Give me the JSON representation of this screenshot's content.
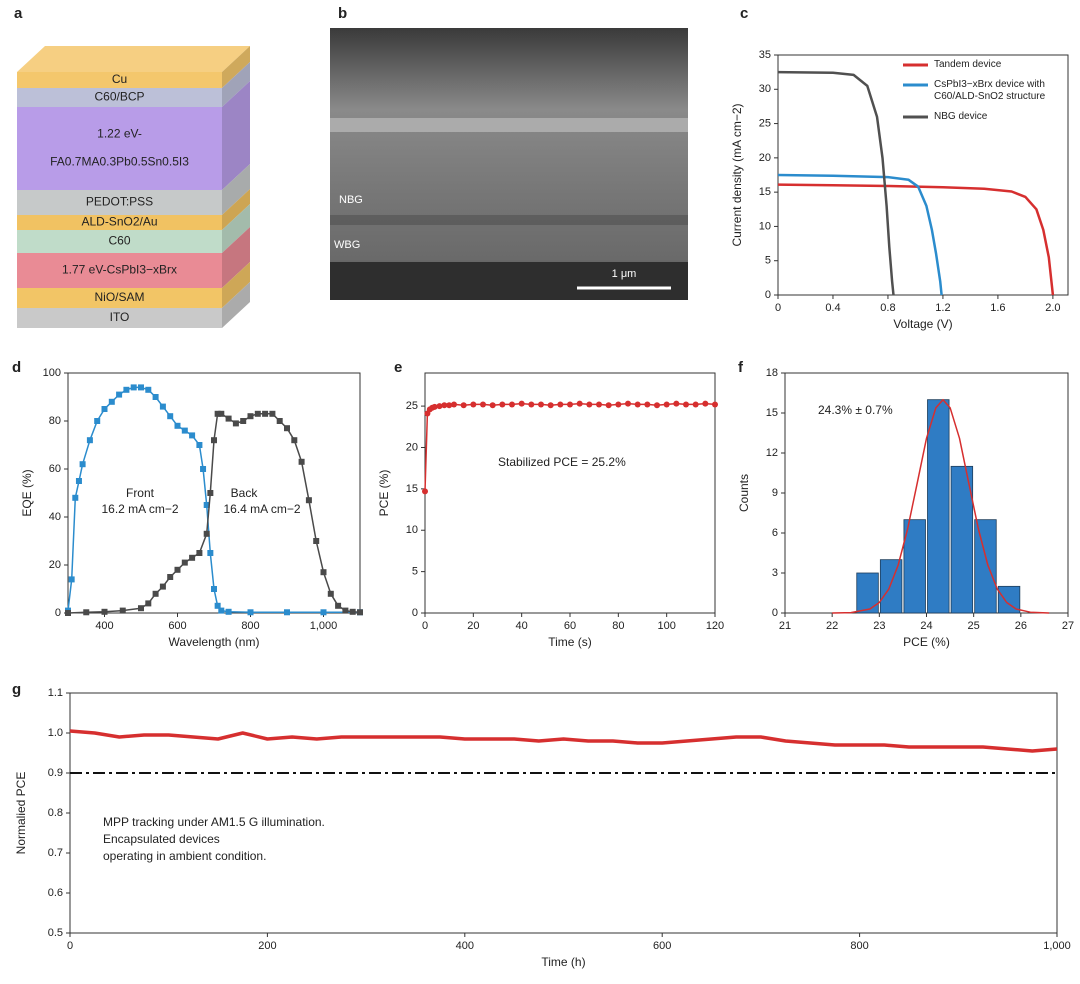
{
  "panel_labels": [
    "a",
    "b",
    "c",
    "d",
    "e",
    "f",
    "g"
  ],
  "diagram": {
    "layers": [
      {
        "label": [
          "Cu"
        ],
        "color": "#f4c76c"
      },
      {
        "label": [
          "C60/BCP"
        ],
        "color": "#bcc0d8"
      },
      {
        "label": [
          "1.22 eV-",
          "FA0.7MA0.3Pb0.5Sn0.5I3"
        ],
        "color": "#b89ce8"
      },
      {
        "label": [
          "PEDOT:PSS"
        ],
        "color": "#c6c9c9"
      },
      {
        "label": [
          "ALD-SnO2/Au"
        ],
        "color": "#f1c262"
      },
      {
        "label": [
          "C60"
        ],
        "color": "#c0dcc9"
      },
      {
        "label": [
          "1.77 eV-CsPbI3−xBrx"
        ],
        "color": "#e98b95"
      },
      {
        "label": [
          "NiO/SAM"
        ],
        "color": "#f2c566"
      },
      {
        "label": [
          "ITO"
        ],
        "color": "#c9c9c9"
      }
    ]
  },
  "image": {
    "labels": [
      "NBG",
      "WBG"
    ],
    "scale_bar": "1 μm"
  },
  "chart_data": [
    {
      "type": "line",
      "xlabel": "Voltage (V)",
      "ylabel": "Current density (mA cm−2)",
      "xlim": [
        0,
        2.11
      ],
      "xticks": [
        0,
        0.4,
        0.8,
        1.2,
        1.6,
        {
          "value": 2,
          "label": "2.0"
        }
      ],
      "ylim": [
        0,
        35
      ],
      "yticks": [
        0,
        5,
        10,
        15,
        20,
        25,
        30,
        35
      ],
      "legend": "upper right",
      "series": [
        {
          "name": "Tandem device",
          "color": "#d62f2f",
          "x": [
            0,
            0.4,
            0.8,
            1.2,
            1.5,
            1.7,
            1.8,
            1.88,
            1.93,
            1.97,
            2.0
          ],
          "values": [
            16.1,
            16.0,
            15.9,
            15.7,
            15.5,
            15.1,
            14.3,
            12.5,
            9.5,
            5.5,
            0
          ]
        },
        {
          "name": "CsPbI3−xBrx device with C60/ALD-SnO2 structure",
          "color": "#2b8ccd",
          "x": [
            0,
            0.4,
            0.8,
            0.95,
            1.02,
            1.08,
            1.12,
            1.15,
            1.18,
            1.19
          ],
          "values": [
            17.5,
            17.4,
            17.2,
            16.8,
            15.8,
            13,
            9.5,
            6,
            2,
            0
          ]
        },
        {
          "name": "NBG device",
          "color": "#505050",
          "x": [
            0,
            0.4,
            0.55,
            0.65,
            0.72,
            0.76,
            0.79,
            0.81,
            0.83,
            0.84
          ],
          "values": [
            32.5,
            32.4,
            32.1,
            30.5,
            26,
            20,
            13,
            7,
            2,
            0
          ]
        }
      ]
    },
    {
      "type": "line",
      "xlabel": "Wavelength (nm)",
      "ylabel": "EQE (%)",
      "xlim": [
        300,
        1100
      ],
      "xticks": [
        400,
        600,
        800,
        {
          "value": 1000,
          "label": "1,000"
        }
      ],
      "ylim": [
        0,
        100
      ],
      "yticks": [
        0,
        20,
        40,
        60,
        80,
        100
      ],
      "annotations": [
        "Front",
        "16.2 mA cm−2",
        "Back",
        "16.4 mA cm−2"
      ],
      "series": [
        {
          "color": "#2b8ccd",
          "marker": "square",
          "x": [
            300,
            310,
            320,
            330,
            340,
            360,
            380,
            400,
            420,
            440,
            460,
            480,
            500,
            520,
            540,
            560,
            580,
            600,
            620,
            640,
            660,
            670,
            680,
            690,
            700,
            710,
            720,
            740,
            800,
            900,
            1000,
            1100
          ],
          "values": [
            1,
            14,
            48,
            55,
            62,
            72,
            80,
            85,
            88,
            91,
            93,
            94,
            94,
            93,
            90,
            86,
            82,
            78,
            76,
            74,
            70,
            60,
            45,
            25,
            10,
            3,
            1,
            0.5,
            0.3,
            0.3,
            0.3,
            0.3
          ]
        },
        {
          "color": "#4a4a4a",
          "marker": "square",
          "x": [
            300,
            350,
            400,
            450,
            500,
            520,
            540,
            560,
            580,
            600,
            620,
            640,
            660,
            680,
            690,
            700,
            710,
            720,
            740,
            760,
            780,
            800,
            820,
            840,
            860,
            880,
            900,
            920,
            940,
            960,
            980,
            1000,
            1020,
            1040,
            1060,
            1080,
            1100
          ],
          "values": [
            0,
            0.3,
            0.5,
            1,
            2,
            4,
            8,
            11,
            15,
            18,
            21,
            23,
            25,
            33,
            50,
            72,
            83,
            83,
            81,
            79,
            80,
            82,
            83,
            83,
            83,
            80,
            77,
            72,
            63,
            47,
            30,
            17,
            8,
            3,
            1,
            0.5,
            0.3
          ]
        }
      ]
    },
    {
      "type": "line",
      "xlabel": "Time (s)",
      "ylabel": "PCE (%)",
      "xlim": [
        0,
        120
      ],
      "xticks": [
        0,
        20,
        40,
        60,
        80,
        100,
        120
      ],
      "ylim": [
        0,
        29
      ],
      "yticks": [
        0,
        5,
        10,
        15,
        20,
        25
      ],
      "annotations": [
        "Stabilized PCE = 25.2%"
      ],
      "series": [
        {
          "color": "#d62f2f",
          "marker": "circle",
          "x": [
            0,
            1,
            2,
            3,
            4,
            6,
            8,
            10,
            12,
            16,
            20,
            24,
            28,
            32,
            36,
            40,
            44,
            48,
            52,
            56,
            60,
            64,
            68,
            72,
            76,
            80,
            84,
            88,
            92,
            96,
            100,
            104,
            108,
            112,
            116,
            120
          ],
          "values": [
            14.7,
            24.1,
            24.6,
            24.8,
            24.9,
            25.0,
            25.1,
            25.1,
            25.2,
            25.1,
            25.2,
            25.2,
            25.1,
            25.2,
            25.2,
            25.3,
            25.2,
            25.2,
            25.1,
            25.2,
            25.2,
            25.3,
            25.2,
            25.2,
            25.1,
            25.2,
            25.3,
            25.2,
            25.2,
            25.1,
            25.2,
            25.3,
            25.2,
            25.2,
            25.3,
            25.2
          ]
        }
      ]
    },
    {
      "type": "histogram",
      "xlabel": "PCE (%)",
      "ylabel": "Counts",
      "xlim": [
        21,
        27
      ],
      "xticks": [
        21,
        22,
        23,
        24,
        25,
        26,
        27
      ],
      "ylim": [
        0,
        18
      ],
      "yticks": [
        0,
        3,
        6,
        9,
        12,
        15,
        18
      ],
      "bins": [
        22.5,
        23,
        23.5,
        24,
        24.5,
        25,
        25.5,
        26
      ],
      "counts": [
        3,
        4,
        7,
        16,
        11,
        7,
        2
      ],
      "color": "#2f7cc4",
      "annotations": [
        "24.3% ± 0.7%"
      ],
      "series": [
        {
          "color": "#d62f2f",
          "x": [
            22.0,
            22.4,
            22.8,
            23.0,
            23.2,
            23.4,
            23.6,
            23.8,
            24.0,
            24.2,
            24.35,
            24.5,
            24.7,
            24.9,
            25.1,
            25.3,
            25.5,
            25.7,
            25.9,
            26.2,
            26.6
          ],
          "values": [
            0,
            0.03,
            0.3,
            0.79,
            1.79,
            3.6,
            6.3,
            9.7,
            13.1,
            15.4,
            16,
            15.4,
            13.1,
            9.7,
            6.3,
            3.6,
            1.79,
            0.79,
            0.3,
            0.06,
            0
          ]
        }
      ]
    },
    {
      "type": "line",
      "xlabel": "Time (h)",
      "ylabel": "Normalied PCE",
      "xlim": [
        0,
        1000
      ],
      "xticks": [
        0,
        200,
        400,
        600,
        800,
        {
          "value": 1000,
          "label": "1,000"
        }
      ],
      "ylim": [
        0.5,
        1.1
      ],
      "yticks": [
        0.5,
        0.6,
        0.7,
        0.8,
        0.9,
        {
          "value": 1,
          "label": "1.0"
        },
        1.1
      ],
      "hline": 0.9,
      "annotations": [
        "MPP tracking under AM1.5 G illumination.",
        "Encapsulated devices",
        "operating in ambient condition."
      ],
      "series": [
        {
          "color": "#d62f2f",
          "x": [
            0,
            25,
            50,
            75,
            100,
            125,
            150,
            175,
            200,
            225,
            250,
            275,
            300,
            325,
            350,
            375,
            400,
            425,
            450,
            475,
            500,
            525,
            550,
            575,
            600,
            625,
            650,
            675,
            700,
            725,
            750,
            775,
            800,
            825,
            850,
            875,
            900,
            925,
            950,
            975,
            1000
          ],
          "values": [
            1.005,
            1.0,
            0.99,
            0.995,
            0.995,
            0.99,
            0.985,
            1.0,
            0.985,
            0.99,
            0.985,
            0.99,
            0.99,
            0.99,
            0.99,
            0.99,
            0.985,
            0.985,
            0.985,
            0.98,
            0.985,
            0.98,
            0.98,
            0.975,
            0.975,
            0.98,
            0.985,
            0.99,
            0.99,
            0.98,
            0.975,
            0.97,
            0.97,
            0.97,
            0.965,
            0.965,
            0.965,
            0.965,
            0.96,
            0.955,
            0.96
          ]
        }
      ]
    }
  ]
}
